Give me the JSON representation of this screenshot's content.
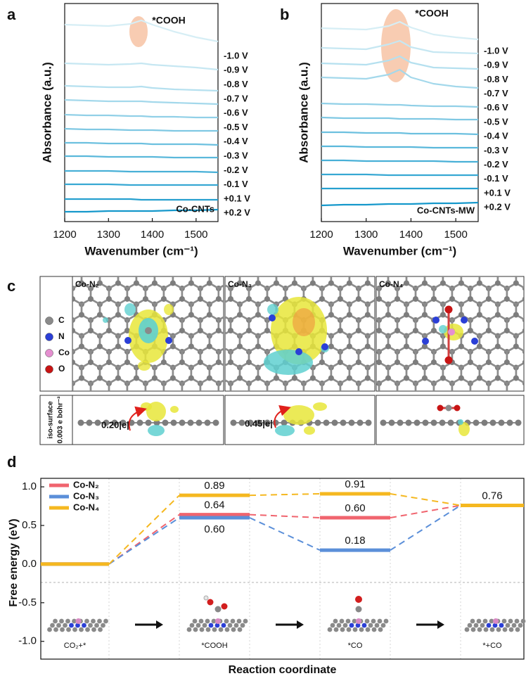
{
  "panel_labels": [
    "a",
    "b",
    "c",
    "d"
  ],
  "chart_data": [
    {
      "type": "line",
      "y_label": "Absorbance (a.u.)",
      "x_label": "Wavenumber (cm⁻¹)",
      "annotation": "*COOH",
      "sample": "Co-CNTs",
      "x": [
        1200,
        1250,
        1300,
        1350,
        1375,
        1400,
        1450,
        1500,
        1550
      ],
      "xlim": [
        1200,
        1550
      ],
      "xticks": [
        1200,
        1300,
        1400,
        1500
      ],
      "ylim": [
        0,
        31
      ],
      "series": [
        {
          "name": "-1.0 V",
          "color": "#d6eef5",
          "values": [
            28.0,
            27.9,
            27.8,
            28.1,
            28.6,
            28.0,
            27.0,
            26.2,
            25.6
          ]
        },
        {
          "name": "-0.9 V",
          "color": "#c6e7f2",
          "values": [
            22.5,
            22.4,
            22.3,
            22.4,
            22.5,
            22.3,
            22.1,
            21.9,
            21.6
          ]
        },
        {
          "name": "-0.8 V",
          "color": "#b5e0ef",
          "values": [
            19.3,
            19.2,
            19.1,
            19.1,
            19.2,
            19.0,
            18.8,
            18.7,
            18.6
          ]
        },
        {
          "name": "-0.7 V",
          "color": "#a3d8eb",
          "values": [
            17.3,
            17.2,
            17.1,
            17.1,
            17.1,
            17.0,
            16.9,
            16.8,
            16.7
          ]
        },
        {
          "name": "-0.6 V",
          "color": "#91d0e7",
          "values": [
            15.2,
            15.1,
            15.1,
            15.0,
            15.0,
            14.9,
            14.9,
            14.8,
            14.8
          ]
        },
        {
          "name": "-0.5 V",
          "color": "#7fc8e3",
          "values": [
            13.2,
            13.1,
            13.1,
            13.0,
            13.0,
            13.0,
            12.9,
            12.9,
            12.9
          ]
        },
        {
          "name": "-0.4 V",
          "color": "#6cc0df",
          "values": [
            11.2,
            11.2,
            11.1,
            11.1,
            11.1,
            11.0,
            11.0,
            11.0,
            10.9
          ]
        },
        {
          "name": "-0.3 V",
          "color": "#5ab8db",
          "values": [
            9.3,
            9.3,
            9.2,
            9.2,
            9.2,
            9.2,
            9.1,
            9.1,
            9.1
          ]
        },
        {
          "name": "-0.2 V",
          "color": "#48b0d7",
          "values": [
            7.2,
            7.2,
            7.2,
            7.1,
            7.1,
            7.1,
            7.1,
            7.1,
            7.0
          ]
        },
        {
          "name": "-0.1 V",
          "color": "#37a8d3",
          "values": [
            5.3,
            5.3,
            5.3,
            5.2,
            5.2,
            5.2,
            5.2,
            5.2,
            5.2
          ]
        },
        {
          "name": "+0.1 V",
          "color": "#26a0cf",
          "values": [
            3.2,
            3.2,
            3.2,
            3.2,
            3.1,
            3.1,
            3.1,
            3.1,
            3.1
          ]
        },
        {
          "name": "+0.2 V",
          "color": "#1598cb",
          "values": [
            1.4,
            1.4,
            1.5,
            1.5,
            1.5,
            1.5,
            1.6,
            1.6,
            1.7
          ]
        }
      ]
    },
    {
      "type": "line",
      "y_label": "Absorbance (a.u.)",
      "x_label": "Wavenumber (cm⁻¹)",
      "annotation": "*COOH",
      "sample": "Co-CNTs-MW",
      "x": [
        1200,
        1250,
        1300,
        1350,
        1375,
        1400,
        1450,
        1500,
        1550
      ],
      "xlim": [
        1200,
        1550
      ],
      "xticks": [
        1200,
        1300,
        1400,
        1500
      ],
      "ylim": [
        0,
        31
      ],
      "series": [
        {
          "name": "-1.0 V",
          "color": "#d6eef5",
          "values": [
            27.5,
            27.4,
            27.3,
            27.8,
            28.4,
            27.6,
            26.6,
            26.2,
            25.9
          ]
        },
        {
          "name": "-0.9 V",
          "color": "#c6e7f2",
          "values": [
            24.7,
            24.6,
            24.5,
            25.2,
            25.7,
            24.8,
            24.1,
            24.0,
            23.9
          ]
        },
        {
          "name": "-0.8 V",
          "color": "#b5e0ef",
          "values": [
            22.5,
            22.4,
            22.3,
            22.9,
            23.5,
            22.6,
            21.9,
            21.8,
            21.7
          ]
        },
        {
          "name": "-0.7 V",
          "color": "#a3d8eb",
          "values": [
            20.5,
            20.4,
            20.3,
            20.9,
            21.6,
            20.5,
            19.6,
            19.2,
            19.0
          ]
        },
        {
          "name": "-0.6 V",
          "color": "#91d0e7",
          "values": [
            16.8,
            16.7,
            16.7,
            16.6,
            16.6,
            16.5,
            16.4,
            16.4,
            16.3
          ]
        },
        {
          "name": "-0.5 V",
          "color": "#7fc8e3",
          "values": [
            14.8,
            14.7,
            14.7,
            14.7,
            14.6,
            14.6,
            14.6,
            14.5,
            14.5
          ]
        },
        {
          "name": "-0.4 V",
          "color": "#6cc0df",
          "values": [
            12.7,
            12.7,
            12.6,
            12.6,
            12.6,
            12.5,
            12.5,
            12.5,
            12.4
          ]
        },
        {
          "name": "-0.3 V",
          "color": "#5ab8db",
          "values": [
            10.7,
            10.7,
            10.6,
            10.6,
            10.6,
            10.6,
            10.5,
            10.5,
            10.5
          ]
        },
        {
          "name": "-0.2 V",
          "color": "#48b0d7",
          "values": [
            8.7,
            8.7,
            8.6,
            8.6,
            8.6,
            8.6,
            8.6,
            8.5,
            8.5
          ]
        },
        {
          "name": "-0.1 V",
          "color": "#37a8d3",
          "values": [
            6.7,
            6.7,
            6.7,
            6.6,
            6.6,
            6.6,
            6.6,
            6.6,
            6.6
          ]
        },
        {
          "name": "+0.1 V",
          "color": "#26a0cf",
          "values": [
            4.7,
            4.7,
            4.7,
            4.7,
            4.7,
            4.7,
            4.7,
            4.7,
            4.7
          ]
        },
        {
          "name": "+0.2 V",
          "color": "#1598cb",
          "values": [
            2.3,
            2.4,
            2.4,
            2.5,
            2.5,
            2.5,
            2.6,
            2.6,
            2.7
          ]
        }
      ]
    },
    {
      "type": "energy_levels",
      "y_label": "Free energy (eV)",
      "x_label": "Reaction coordinate",
      "categories": [
        "CO₂+*",
        "*COOH",
        "*CO",
        "*+CO"
      ],
      "ylim": [
        -1.23,
        1.11
      ],
      "yticks": [
        {
          "value": -1,
          "label": "-1.0"
        },
        -0.5,
        {
          "value": 0,
          "label": "0.0"
        },
        0.5,
        {
          "value": 1,
          "label": "1.0"
        }
      ],
      "legend": "upper left",
      "series": [
        {
          "name": "Co-N₂",
          "color": "#f0646e",
          "values": [
            0,
            0.64,
            0.6,
            0.76
          ],
          "value_labels": [
            null,
            "0.64",
            "0.60",
            null
          ]
        },
        {
          "name": "Co-N₃",
          "color": "#5b8fd9",
          "values": [
            0,
            0.6,
            0.18,
            0.76
          ],
          "value_labels": [
            null,
            "0.60",
            "0.18",
            null
          ]
        },
        {
          "name": "Co-N₄",
          "color": "#f5b820",
          "values": [
            0,
            0.89,
            0.91,
            0.76
          ],
          "value_labels": [
            null,
            "0.89",
            "0.91",
            "0.76"
          ]
        }
      ]
    }
  ],
  "panel_c": {
    "legend": [
      "C",
      "N",
      "Co",
      "O"
    ],
    "structures": [
      "Co-N₂",
      "Co-N₃",
      "Co-N₄"
    ],
    "iso_surface": [
      "iso-surface",
      "0.003 e bohr⁻³"
    ],
    "charge_transfer": [
      "0.20|e|",
      "0.45|e|"
    ]
  }
}
